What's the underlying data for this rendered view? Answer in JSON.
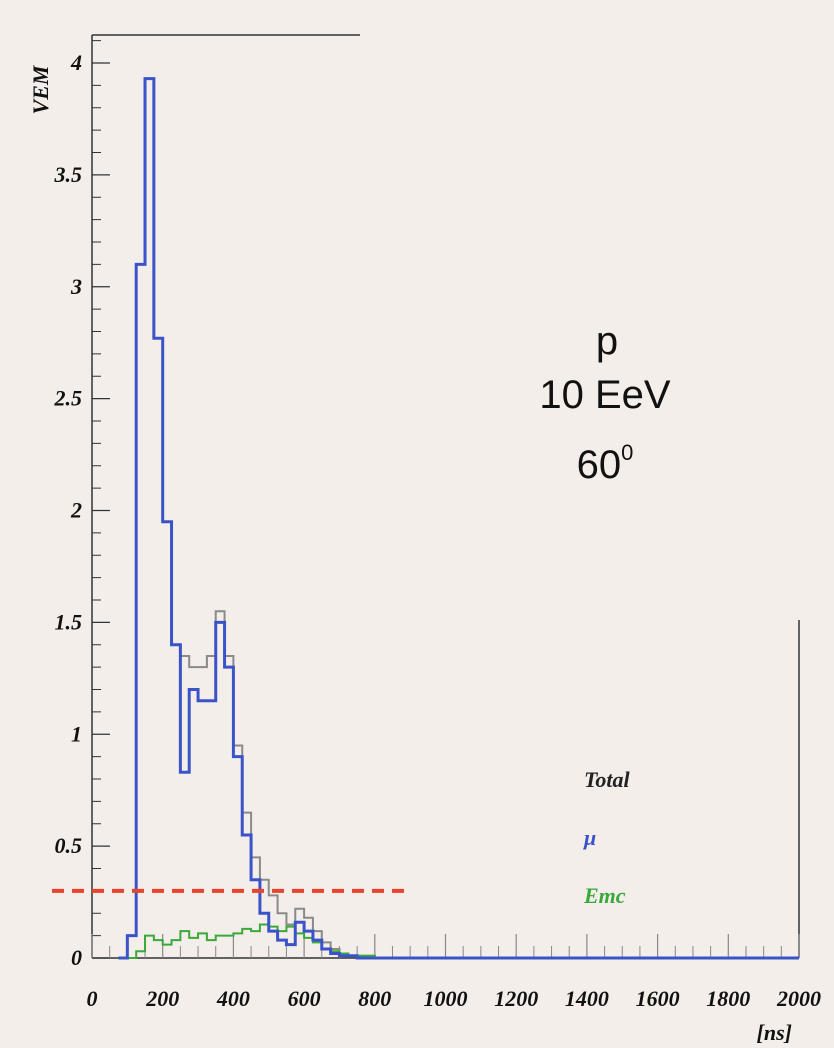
{
  "colors": {
    "background": "#f3eee9",
    "total": "#8a8a8a",
    "muon": "#3b53c9",
    "emc": "#3aa83a",
    "threshold": "#e8442b",
    "axis": "#333333"
  },
  "annotation": {
    "particle": "p",
    "energy": "10 EeV",
    "angle_base": "60",
    "angle_sup": "0"
  },
  "chart_data": {
    "type": "line",
    "step": true,
    "title": "",
    "xlabel": "[ns]",
    "ylabel": "VEM",
    "xlim": [
      0,
      2000
    ],
    "ylim": [
      0,
      4.2
    ],
    "x_ticks": [
      0,
      200,
      400,
      600,
      800,
      1000,
      1200,
      1400,
      1600,
      1800,
      2000
    ],
    "y_ticks": [
      0,
      0.5,
      1,
      1.5,
      2,
      2.5,
      3,
      3.5,
      4
    ],
    "y_tick_labels": [
      "0",
      "0.5",
      "1",
      "1.5",
      "2",
      "2.5",
      "3",
      "3.5",
      "4"
    ],
    "bin_width": 25,
    "legend": {
      "placement": "bottom-right",
      "entries": [
        "Total",
        "μ",
        "Emc"
      ]
    },
    "threshold_line": {
      "y": 0.3,
      "x_range": [
        -25,
        900
      ]
    },
    "series": [
      {
        "name": "Total",
        "color": "#8a8a8a",
        "bin_starts": [
          100,
          125,
          150,
          175,
          200,
          225,
          250,
          275,
          300,
          325,
          350,
          375,
          400,
          425,
          450,
          475,
          500,
          525,
          550,
          575,
          600,
          625,
          650,
          675,
          700,
          725,
          750,
          775,
          800
        ],
        "values": [
          0.1,
          3.1,
          3.93,
          2.77,
          1.95,
          1.4,
          1.35,
          1.3,
          1.3,
          1.35,
          1.55,
          1.35,
          0.95,
          0.65,
          0.45,
          0.35,
          0.28,
          0.2,
          0.15,
          0.22,
          0.18,
          0.12,
          0.07,
          0.04,
          0.02,
          0.01,
          0.01,
          0.01,
          0
        ]
      },
      {
        "name": "μ",
        "color": "#3b53c9",
        "bin_starts": [
          100,
          125,
          150,
          175,
          200,
          225,
          250,
          275,
          300,
          325,
          350,
          375,
          400,
          425,
          450,
          475,
          500,
          525,
          550,
          575,
          600,
          625,
          650,
          675,
          700,
          725,
          750,
          775,
          800
        ],
        "values": [
          0.1,
          3.1,
          3.93,
          2.77,
          1.95,
          1.4,
          0.83,
          1.2,
          1.15,
          1.15,
          1.5,
          1.3,
          0.9,
          0.55,
          0.35,
          0.2,
          0.12,
          0.08,
          0.06,
          0.16,
          0.12,
          0.08,
          0.04,
          0.02,
          0.01,
          0.01,
          0,
          0,
          0
        ]
      },
      {
        "name": "Emc",
        "color": "#3aa83a",
        "bin_starts": [
          100,
          125,
          150,
          175,
          200,
          225,
          250,
          275,
          300,
          325,
          350,
          375,
          400,
          425,
          450,
          475,
          500,
          525,
          550,
          575,
          600,
          625,
          650,
          675,
          700,
          725,
          750,
          775,
          800
        ],
        "values": [
          0,
          0.03,
          0.1,
          0.08,
          0.06,
          0.08,
          0.12,
          0.09,
          0.11,
          0.08,
          0.1,
          0.1,
          0.11,
          0.13,
          0.12,
          0.15,
          0.14,
          0.12,
          0.14,
          0.11,
          0.09,
          0.07,
          0.04,
          0.03,
          0.02,
          0.01,
          0.01,
          0.01,
          0
        ]
      }
    ]
  }
}
